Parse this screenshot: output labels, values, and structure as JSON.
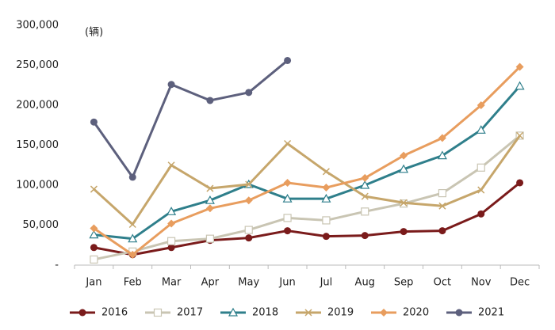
{
  "chart_data": {
    "type": "line",
    "annotation": "(辆)",
    "categories": [
      "Jan",
      "Feb",
      "Mar",
      "Apr",
      "May",
      "Jun",
      "Jul",
      "Aug",
      "Sep",
      "Oct",
      "Nov",
      "Dec"
    ],
    "ylim": [
      0,
      300000
    ],
    "yticks": [
      {
        "value": 0,
        "label": "-"
      },
      {
        "value": 50000,
        "label": "50,000"
      },
      {
        "value": 100000,
        "label": "100,000"
      },
      {
        "value": 150000,
        "label": "150,000"
      },
      {
        "value": 200000,
        "label": "200,000"
      },
      {
        "value": 250000,
        "label": "250,000"
      },
      {
        "value": 300000,
        "label": "300,000"
      }
    ],
    "grid": false,
    "legend": "bottom",
    "series": [
      {
        "name": "2016",
        "color": "#7a1b1b",
        "marker": "circle",
        "values": [
          22000,
          13000,
          22000,
          31000,
          34000,
          43000,
          36000,
          37000,
          42000,
          43000,
          64000,
          103000
        ]
      },
      {
        "name": "2017",
        "color": "#c9c5b3",
        "marker": "square",
        "values": [
          7000,
          17000,
          30000,
          33000,
          44000,
          59000,
          56000,
          67000,
          77000,
          90000,
          122000,
          162000
        ]
      },
      {
        "name": "2018",
        "color": "#2f7f8b",
        "marker": "triangle",
        "values": [
          38000,
          33000,
          67000,
          81000,
          101000,
          83000,
          83000,
          100000,
          120000,
          137000,
          169000,
          224000
        ]
      },
      {
        "name": "2019",
        "color": "#c6a66b",
        "marker": "x",
        "values": [
          95000,
          51000,
          125000,
          96000,
          101000,
          152000,
          117000,
          86000,
          78000,
          74000,
          94000,
          162000
        ]
      },
      {
        "name": "2020",
        "color": "#e89d5e",
        "marker": "diamond",
        "values": [
          46000,
          13000,
          52000,
          71000,
          81000,
          103000,
          97000,
          109000,
          137000,
          159000,
          200000,
          248000
        ]
      },
      {
        "name": "2021",
        "color": "#5d607d",
        "marker": "circle",
        "values": [
          179000,
          110000,
          226000,
          206000,
          216000,
          256000,
          null,
          null,
          null,
          null,
          null,
          null
        ]
      }
    ]
  }
}
